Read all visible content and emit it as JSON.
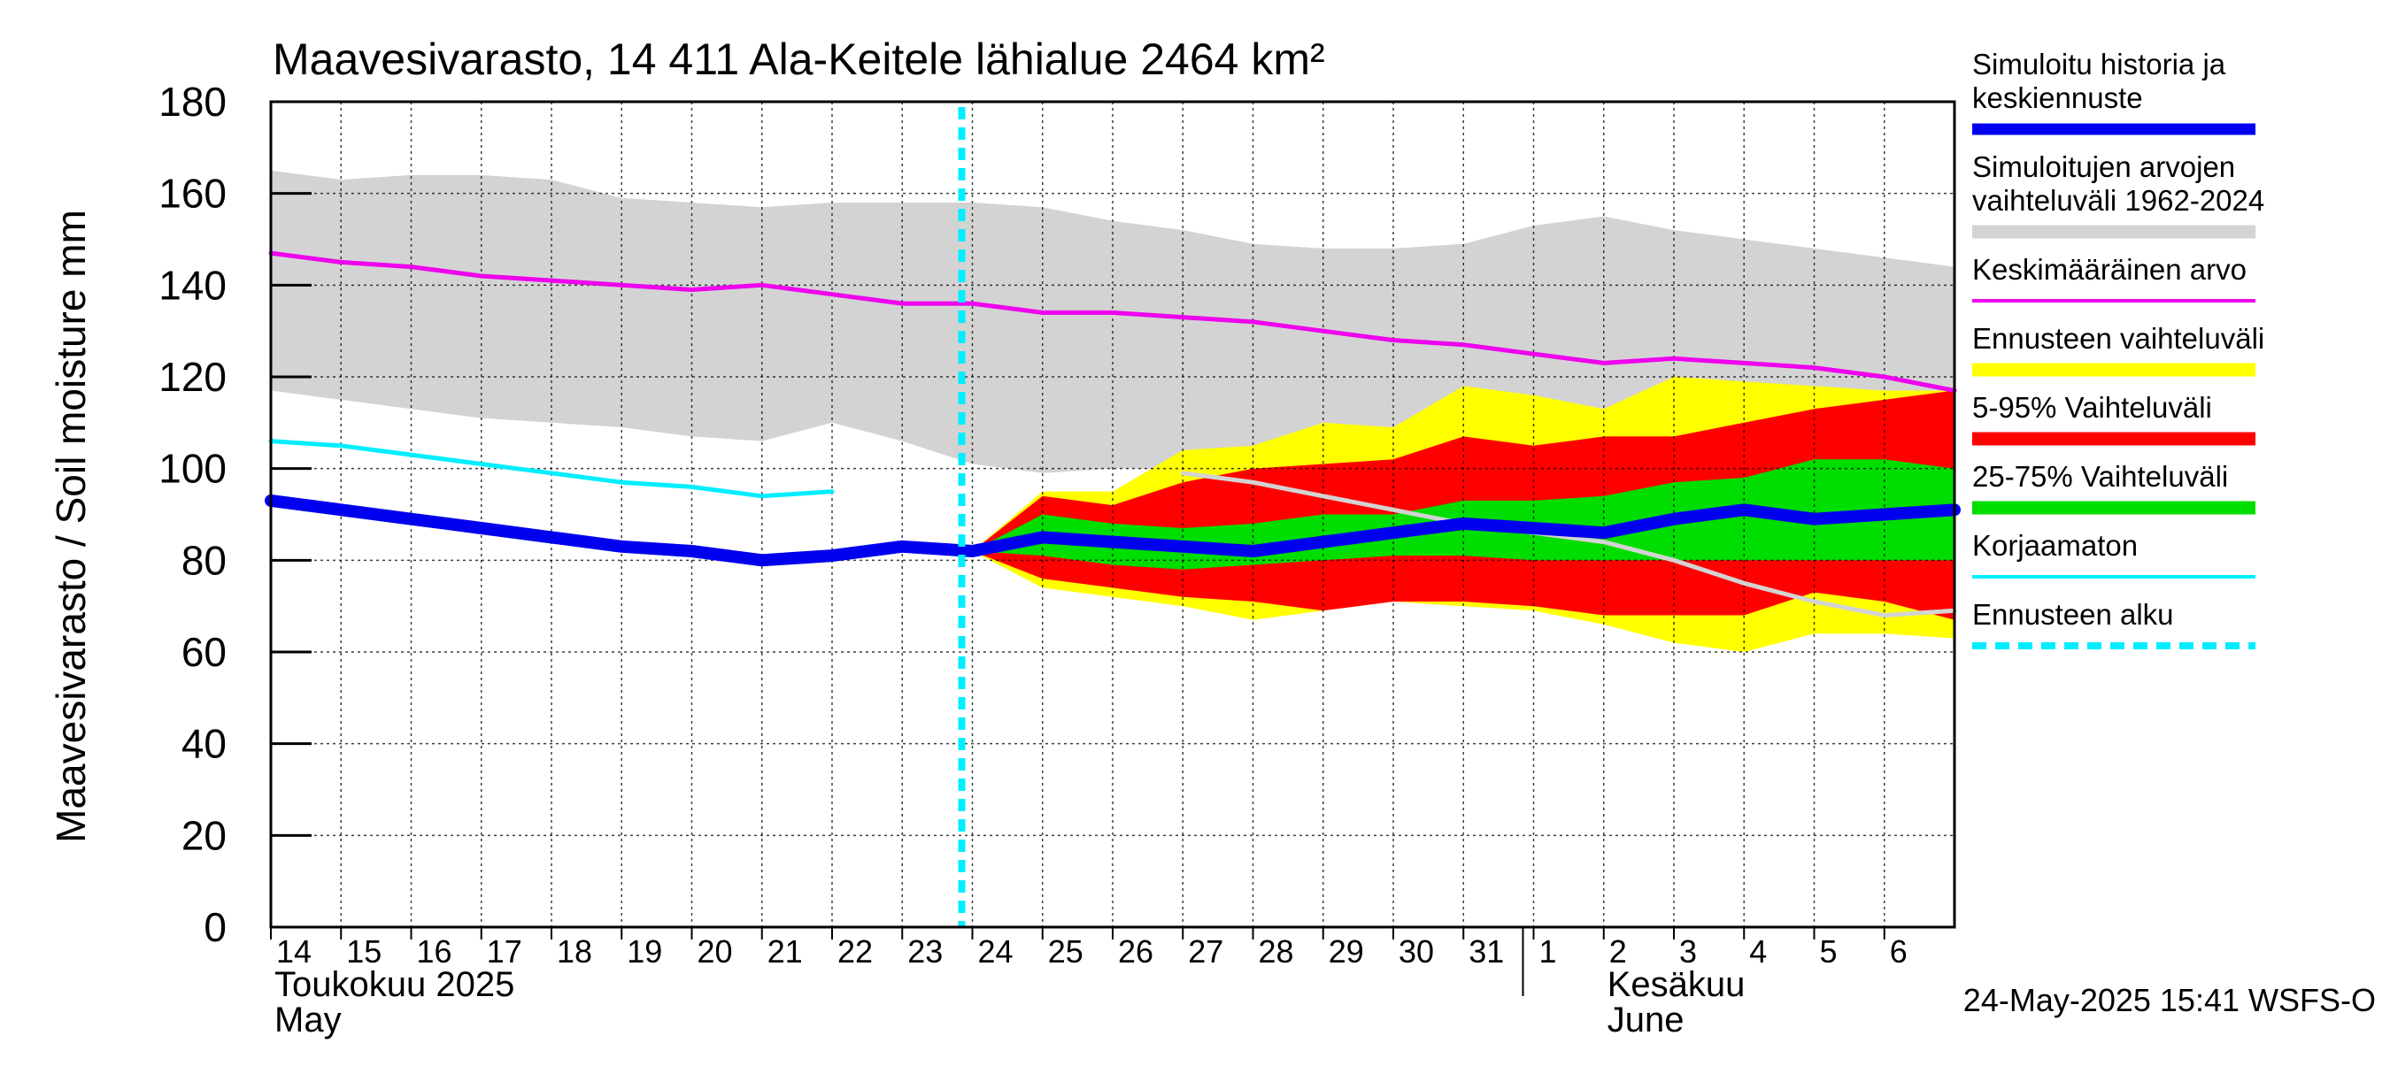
{
  "chart_data": {
    "type": "area",
    "title": "Maavesivarasto, 14 411 Ala-Keitele lähialue 2464 km²",
    "ylabel": "Maavesivarasto / Soil moisture   mm",
    "ylim": [
      0,
      180
    ],
    "yticks": [
      0,
      20,
      40,
      60,
      80,
      100,
      120,
      140,
      160,
      180
    ],
    "x_range": [
      "2025-05-14",
      "2025-06-07"
    ],
    "grid": true,
    "legend_position": "right",
    "x_ticks": [
      {
        "date": "2025-05-14",
        "label": "14"
      },
      {
        "date": "2025-05-15",
        "label": "15"
      },
      {
        "date": "2025-05-16",
        "label": "16"
      },
      {
        "date": "2025-05-17",
        "label": "17"
      },
      {
        "date": "2025-05-18",
        "label": "18"
      },
      {
        "date": "2025-05-19",
        "label": "19"
      },
      {
        "date": "2025-05-20",
        "label": "20"
      },
      {
        "date": "2025-05-21",
        "label": "21"
      },
      {
        "date": "2025-05-22",
        "label": "22"
      },
      {
        "date": "2025-05-23",
        "label": "23"
      },
      {
        "date": "2025-05-24",
        "label": "24"
      },
      {
        "date": "2025-05-25",
        "label": "25"
      },
      {
        "date": "2025-05-26",
        "label": "26"
      },
      {
        "date": "2025-05-27",
        "label": "27"
      },
      {
        "date": "2025-05-28",
        "label": "28"
      },
      {
        "date": "2025-05-29",
        "label": "29"
      },
      {
        "date": "2025-05-30",
        "label": "30"
      },
      {
        "date": "2025-05-31",
        "label": "31"
      },
      {
        "date": "2025-06-01",
        "label": "1"
      },
      {
        "date": "2025-06-02",
        "label": "2"
      },
      {
        "date": "2025-06-03",
        "label": "3"
      },
      {
        "date": "2025-06-04",
        "label": "4"
      },
      {
        "date": "2025-06-05",
        "label": "5"
      },
      {
        "date": "2025-06-06",
        "label": "6"
      }
    ],
    "month_labels": [
      {
        "date": "2025-05-14",
        "line1": "Toukokuu  2025",
        "line2": "May"
      },
      {
        "date": "2025-06-02",
        "line1": "Kesäkuu",
        "line2": "June"
      }
    ],
    "month_separator_date": "2025-06-01",
    "forecast_start_date": "2025-05-24",
    "timestamp": "24-May-2025 15:41 WSFS-O",
    "series": [
      {
        "key": "hist_range",
        "name": "Simuloitujen arvojen vaihteluväli 1962-2024",
        "kind": "band",
        "color": "#d3d3d3",
        "x": [
          "2025-05-14",
          "2025-05-15",
          "2025-05-16",
          "2025-05-17",
          "2025-05-18",
          "2025-05-19",
          "2025-05-20",
          "2025-05-21",
          "2025-05-22",
          "2025-05-23",
          "2025-05-24",
          "2025-05-25",
          "2025-05-26",
          "2025-05-27",
          "2025-05-28",
          "2025-05-29",
          "2025-05-30",
          "2025-05-31",
          "2025-06-01",
          "2025-06-02",
          "2025-06-03",
          "2025-06-04",
          "2025-06-05",
          "2025-06-06",
          "2025-06-07"
        ],
        "upper": [
          165,
          163,
          164,
          164,
          163,
          159,
          158,
          157,
          158,
          158,
          158,
          157,
          154,
          152,
          149,
          148,
          148,
          149,
          153,
          155,
          152,
          150,
          148,
          146,
          144
        ],
        "lower": [
          117,
          115,
          113,
          111,
          110,
          109,
          107,
          106,
          110,
          106,
          101,
          99,
          100,
          100,
          99,
          98,
          100,
          98,
          99,
          101,
          103,
          106,
          108,
          111,
          114
        ]
      },
      {
        "key": "forecast_range",
        "name": "Ennusteen vaihteluväli",
        "kind": "band",
        "color": "#ffff00",
        "x": [
          "2025-05-24",
          "2025-05-25",
          "2025-05-26",
          "2025-05-27",
          "2025-05-28",
          "2025-05-29",
          "2025-05-30",
          "2025-05-31",
          "2025-06-01",
          "2025-06-02",
          "2025-06-03",
          "2025-06-04",
          "2025-06-05",
          "2025-06-06",
          "2025-06-07"
        ],
        "upper": [
          82,
          95,
          95,
          104,
          105,
          110,
          109,
          118,
          116,
          113,
          120,
          119,
          118,
          117,
          117
        ],
        "lower": [
          82,
          74,
          72,
          70,
          67,
          69,
          71,
          70,
          69,
          66,
          62,
          60,
          64,
          64,
          63
        ]
      },
      {
        "key": "p5_95",
        "name": "5-95% Vaihteluväli",
        "kind": "band",
        "color": "#ff0000",
        "x": [
          "2025-05-24",
          "2025-05-25",
          "2025-05-26",
          "2025-05-27",
          "2025-05-28",
          "2025-05-29",
          "2025-05-30",
          "2025-05-31",
          "2025-06-01",
          "2025-06-02",
          "2025-06-03",
          "2025-06-04",
          "2025-06-05",
          "2025-06-06",
          "2025-06-07"
        ],
        "upper": [
          82,
          94,
          92,
          97,
          100,
          101,
          102,
          107,
          105,
          107,
          107,
          110,
          113,
          115,
          117
        ],
        "lower": [
          82,
          76,
          74,
          72,
          71,
          69,
          71,
          71,
          70,
          68,
          68,
          68,
          73,
          71,
          67
        ]
      },
      {
        "key": "p25_75",
        "name": "25-75% Vaihteluväli",
        "kind": "band",
        "color": "#00dd00",
        "x": [
          "2025-05-24",
          "2025-05-25",
          "2025-05-26",
          "2025-05-27",
          "2025-05-28",
          "2025-05-29",
          "2025-05-30",
          "2025-05-31",
          "2025-06-01",
          "2025-06-02",
          "2025-06-03",
          "2025-06-04",
          "2025-06-05",
          "2025-06-06",
          "2025-06-07"
        ],
        "upper": [
          82,
          90,
          88,
          87,
          88,
          90,
          90,
          93,
          93,
          94,
          97,
          98,
          102,
          102,
          100
        ],
        "lower": [
          82,
          81,
          79,
          78,
          79,
          80,
          81,
          81,
          80,
          80,
          80,
          80,
          80,
          80,
          80
        ]
      },
      {
        "key": "mean",
        "name": "Keskimääräinen arvo",
        "kind": "line",
        "color": "#ee00ee",
        "x": [
          "2025-05-14",
          "2025-05-15",
          "2025-05-16",
          "2025-05-17",
          "2025-05-18",
          "2025-05-19",
          "2025-05-20",
          "2025-05-21",
          "2025-05-22",
          "2025-05-23",
          "2025-05-24",
          "2025-05-25",
          "2025-05-26",
          "2025-05-27",
          "2025-05-28",
          "2025-05-29",
          "2025-05-30",
          "2025-05-31",
          "2025-06-01",
          "2025-06-02",
          "2025-06-03",
          "2025-06-04",
          "2025-06-05",
          "2025-06-06",
          "2025-06-07"
        ],
        "values": [
          147,
          145,
          144,
          142,
          141,
          140,
          139,
          140,
          138,
          136,
          136,
          134,
          134,
          133,
          132,
          130,
          128,
          127,
          125,
          123,
          124,
          123,
          122,
          120,
          117
        ]
      },
      {
        "key": "uncorrected",
        "name": "Korjaamaton",
        "kind": "line",
        "color": "#00eeff",
        "x": [
          "2025-05-14",
          "2025-05-15",
          "2025-05-16",
          "2025-05-17",
          "2025-05-18",
          "2025-05-19",
          "2025-05-20",
          "2025-05-21",
          "2025-05-22"
        ],
        "values": [
          106,
          105,
          103,
          101,
          99,
          97,
          96,
          94,
          95
        ]
      },
      {
        "key": "gray_line",
        "kind": "line",
        "color": "#d3d3d3",
        "x": [
          "2025-05-27",
          "2025-05-28",
          "2025-05-29",
          "2025-05-30",
          "2025-05-31",
          "2025-06-01",
          "2025-06-02",
          "2025-06-03",
          "2025-06-04",
          "2025-06-05",
          "2025-06-06",
          "2025-06-07"
        ],
        "values": [
          99,
          97,
          94,
          91,
          88,
          86,
          84,
          80,
          75,
          71,
          68,
          69
        ]
      },
      {
        "key": "sim",
        "name": "Simuloitu historia ja keskiennuste",
        "kind": "line",
        "color": "#0000ee",
        "x": [
          "2025-05-14",
          "2025-05-15",
          "2025-05-16",
          "2025-05-17",
          "2025-05-18",
          "2025-05-19",
          "2025-05-20",
          "2025-05-21",
          "2025-05-22",
          "2025-05-23",
          "2025-05-24",
          "2025-05-25",
          "2025-05-26",
          "2025-05-27",
          "2025-05-28",
          "2025-05-29",
          "2025-05-30",
          "2025-05-31",
          "2025-06-01",
          "2025-06-02",
          "2025-06-03",
          "2025-06-04",
          "2025-06-05",
          "2025-06-06",
          "2025-06-07"
        ],
        "values": [
          93,
          91,
          89,
          87,
          85,
          83,
          82,
          80,
          81,
          83,
          82,
          85,
          84,
          83,
          82,
          84,
          86,
          88,
          87,
          86,
          89,
          91,
          89,
          90,
          91
        ]
      }
    ],
    "legend": [
      {
        "key": "sim",
        "lines": [
          "Simuloitu historia ja",
          "keskiennuste"
        ],
        "color": "#0000ee",
        "style": "thick"
      },
      {
        "key": "hist_range",
        "lines": [
          "Simuloitujen arvojen",
          "vaihteluväli 1962-2024"
        ],
        "color": "#d3d3d3",
        "style": "band"
      },
      {
        "key": "mean",
        "lines": [
          "Keskimääräinen arvo"
        ],
        "color": "#ee00ee",
        "style": "thin"
      },
      {
        "key": "forecast_range",
        "lines": [
          "Ennusteen vaihteluväli"
        ],
        "color": "#ffff00",
        "style": "band"
      },
      {
        "key": "p5_95",
        "lines": [
          "5-95% Vaihteluväli"
        ],
        "color": "#ff0000",
        "style": "band"
      },
      {
        "key": "p25_75",
        "lines": [
          "25-75% Vaihteluväli"
        ],
        "color": "#00dd00",
        "style": "band"
      },
      {
        "key": "uncorrected",
        "lines": [
          "Korjaamaton"
        ],
        "color": "#00eeff",
        "style": "thin"
      },
      {
        "key": "forecast_start",
        "lines": [
          "Ennusteen alku"
        ],
        "color": "#00eeff",
        "style": "dashed"
      }
    ]
  }
}
